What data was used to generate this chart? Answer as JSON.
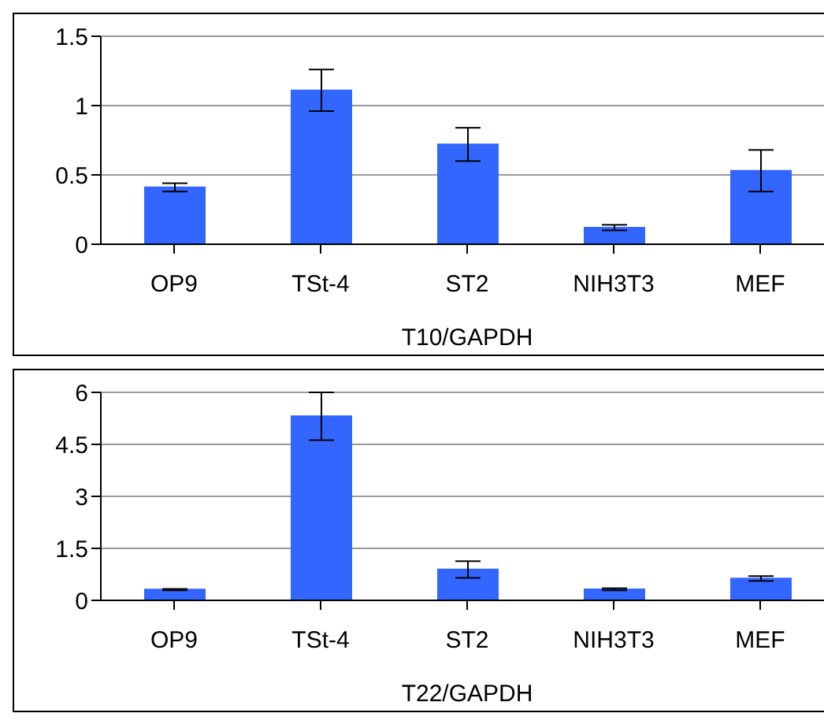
{
  "chart_data": [
    {
      "type": "bar",
      "categories": [
        "OP9",
        "TSt-4",
        "ST2",
        "NIH3T3",
        "MEF"
      ],
      "values": [
        0.41,
        1.11,
        0.72,
        0.12,
        0.53
      ],
      "errors": [
        0.03,
        0.15,
        0.12,
        0.02,
        0.15
      ],
      "color": "#3366ff",
      "ylim": [
        0,
        1.5
      ],
      "yticks": [
        0,
        0.5,
        1,
        1.5
      ],
      "grid": "y",
      "xlabel": "T10/GAPDH",
      "legend": false
    },
    {
      "type": "bar",
      "categories": [
        "OP9",
        "TSt-4",
        "ST2",
        "NIH3T3",
        "MEF"
      ],
      "values": [
        0.31,
        5.31,
        0.89,
        0.32,
        0.63
      ],
      "errors": [
        0.02,
        0.69,
        0.24,
        0.03,
        0.07
      ],
      "color": "#3366ff",
      "ylim": [
        0,
        6
      ],
      "yticks": [
        0,
        1.5,
        3,
        4.5,
        6
      ],
      "grid": "y",
      "xlabel": "T22/GAPDH",
      "legend": false
    }
  ]
}
